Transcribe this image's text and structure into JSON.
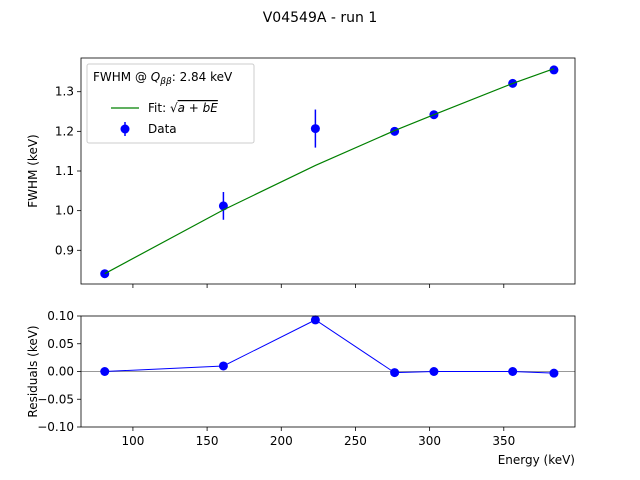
{
  "figure": {
    "title": "V04549A - run 1"
  },
  "chart_data": [
    {
      "type": "scatter",
      "panel": "top",
      "ylabel": "FWHM (keV)",
      "xlim": [
        65,
        398
      ],
      "ylim": [
        0.815,
        1.385
      ],
      "yticks": [
        0.9,
        1.0,
        1.1,
        1.2,
        1.3
      ],
      "ytick_labels": [
        "0.9",
        "1.0",
        "1.1",
        "1.2",
        "1.3"
      ],
      "xticks": [
        100,
        150,
        200,
        250,
        300,
        350
      ],
      "legend": {
        "placement": "top-left",
        "title_prefix": "FWHM @ ",
        "title_symbol": "Q",
        "title_subscript": "ββ",
        "title_suffix": ": 2.84 keV",
        "fit_label_prefix": "Fit: ",
        "fit_label_sqrt": "√",
        "fit_label_expr": "a + bE",
        "data_label": "Data"
      },
      "series": [
        {
          "name": "Data",
          "color": "#0000ff",
          "x": [
            81,
            161,
            223,
            276.4,
            302.9,
            356,
            383.8
          ],
          "y": [
            0.841,
            1.012,
            1.207,
            1.2,
            1.242,
            1.321,
            1.355
          ],
          "yerr": [
            0.003,
            0.035,
            0.048,
            0.004,
            0.004,
            0.004,
            0.004
          ]
        },
        {
          "name": "Fit",
          "color": "#008000",
          "x": [
            81,
            161,
            223,
            276.4,
            302.9,
            356,
            383.8
          ],
          "y": [
            0.841,
            1.002,
            1.114,
            1.202,
            1.242,
            1.321,
            1.358
          ]
        }
      ]
    },
    {
      "type": "line",
      "panel": "bottom",
      "xlabel": "Energy (keV)",
      "ylabel": "Residuals (keV)",
      "xlim": [
        65,
        398
      ],
      "ylim": [
        -0.1,
        0.1
      ],
      "yticks": [
        -0.1,
        -0.05,
        0.0,
        0.05,
        0.1
      ],
      "ytick_labels": [
        "−0.10",
        "−0.05",
        "0.00",
        "0.05",
        "0.10"
      ],
      "xticks": [
        100,
        150,
        200,
        250,
        300,
        350
      ],
      "xtick_labels": [
        "100",
        "150",
        "200",
        "250",
        "300",
        "350"
      ],
      "zero_line_color": "#999999",
      "series": [
        {
          "name": "Residuals",
          "color": "#0000ff",
          "x": [
            81,
            161,
            223,
            276.4,
            302.9,
            356,
            383.8
          ],
          "y": [
            0.0,
            0.01,
            0.093,
            -0.002,
            0.0,
            0.0,
            -0.003
          ]
        }
      ]
    }
  ]
}
